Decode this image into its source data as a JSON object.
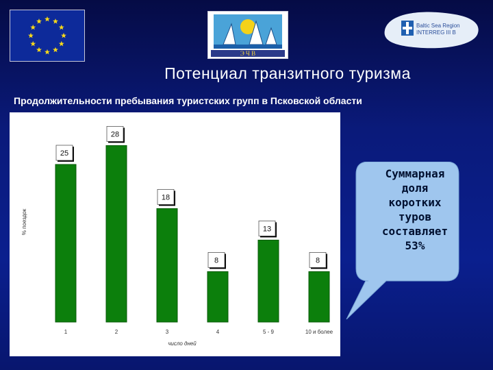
{
  "header": {
    "title": "Потенциал транзитного туризма",
    "subtitle": "Продолжительности пребывания туристских групп в Псковской области"
  },
  "logos": {
    "ships_text": "Э  Ч  В",
    "interreg_line1": "Baltic Sea Region",
    "interreg_line2": "INTERREG III B"
  },
  "colors": {
    "background": "#0a1f8e",
    "bar": "#0c7f0c",
    "callout": "#9fc6ee"
  },
  "callout": {
    "lines": [
      "Суммарная",
      "доля",
      "коротких",
      "туров",
      "составляет",
      "53%"
    ]
  },
  "chart_data": {
    "type": "bar",
    "categories": [
      "1",
      "2",
      "3",
      "4",
      "5 - 9",
      "10 и более"
    ],
    "values": [
      25,
      28,
      18,
      8,
      13,
      8
    ],
    "xlabel": "число дней",
    "ylabel": "% поездок",
    "ylim": [
      0,
      30
    ],
    "data_labels": true,
    "grid": false
  }
}
